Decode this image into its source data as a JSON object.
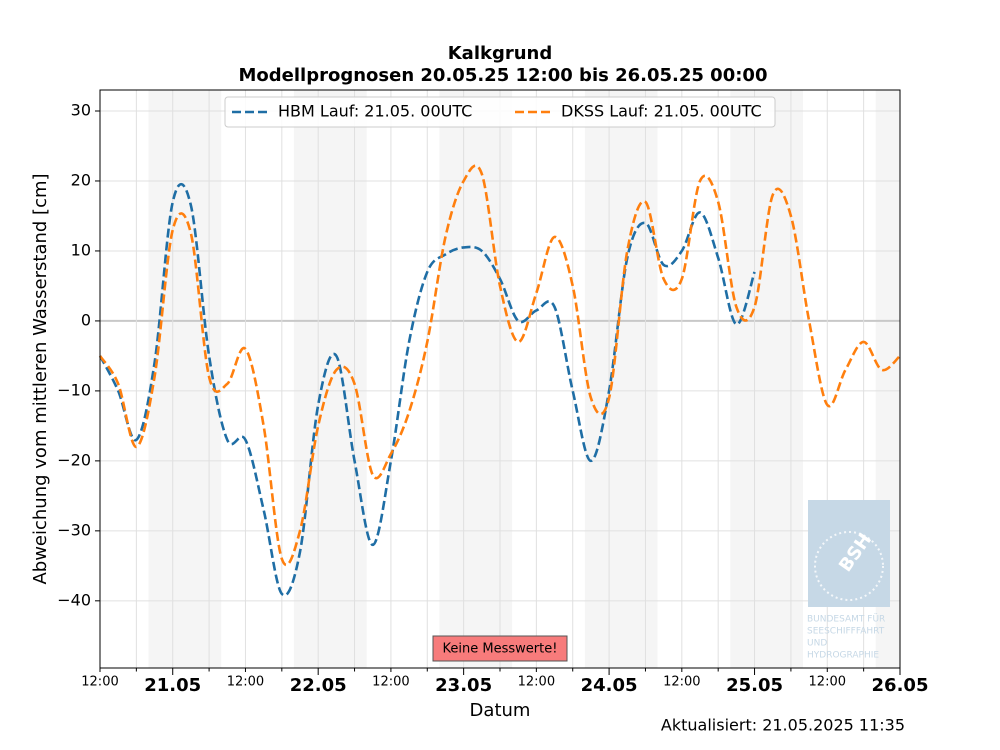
{
  "chart_data": {
    "type": "line",
    "title": "Kalkgrund",
    "subtitle": "Modellprognosen 20.05.25 12:00 bis 26.05.25 00:00",
    "xlabel": "Datum",
    "ylabel": "Abweichung vom mittleren Wasserstand [cm]",
    "annotation": "Keine Messwerte!",
    "updated": "Aktualisiert: 21.05.2025 11:35",
    "logo": {
      "mark": "BSH",
      "lines": [
        "BUNDESAMT FÜR",
        "SEESCHIFFFAHRT",
        "UND",
        "HYDROGRAPHIE"
      ]
    },
    "grid": true,
    "legend": "upper center",
    "x": [
      "2025-05-20T12:00",
      "2025-05-20T15:00",
      "2025-05-20T18:00",
      "2025-05-20T21:00",
      "2025-05-21T00:00",
      "2025-05-21T03:00",
      "2025-05-21T06:00",
      "2025-05-21T09:00",
      "2025-05-21T12:00",
      "2025-05-21T15:00",
      "2025-05-21T18:00",
      "2025-05-21T21:00",
      "2025-05-22T00:00",
      "2025-05-22T03:00",
      "2025-05-22T06:00",
      "2025-05-22T09:00",
      "2025-05-22T12:00",
      "2025-05-22T15:00",
      "2025-05-22T18:00",
      "2025-05-22T21:00",
      "2025-05-23T00:00",
      "2025-05-23T03:00",
      "2025-05-23T06:00",
      "2025-05-23T09:00",
      "2025-05-23T12:00",
      "2025-05-23T15:00",
      "2025-05-23T18:00",
      "2025-05-23T21:00",
      "2025-05-24T00:00",
      "2025-05-24T03:00",
      "2025-05-24T06:00",
      "2025-05-24T09:00",
      "2025-05-24T12:00",
      "2025-05-24T15:00",
      "2025-05-24T18:00",
      "2025-05-24T21:00",
      "2025-05-25T00:00",
      "2025-05-25T03:00",
      "2025-05-25T06:00",
      "2025-05-25T09:00",
      "2025-05-25T12:00",
      "2025-05-25T15:00",
      "2025-05-25T18:00",
      "2025-05-25T21:00",
      "2025-05-26T00:00"
    ],
    "series": [
      {
        "name": "HBM Lauf: 21.05. 00UTC",
        "color": "#1f6ea5",
        "values": [
          -5,
          -10,
          -17,
          -6,
          17,
          16.5,
          -5,
          -17,
          -17,
          -27,
          -39,
          -33,
          -12,
          -5,
          -20,
          -32,
          -20,
          -3,
          7,
          9.5,
          10.5,
          10,
          6,
          0,
          1.5,
          2,
          -10,
          -20,
          -10,
          9,
          14,
          8,
          10,
          15.5,
          9,
          -0.5,
          7,
          null,
          null,
          null,
          null,
          null,
          null,
          null,
          null
        ]
      },
      {
        "name": "DKSS Lauf: 21.05. 00UTC",
        "color": "#ff7f0e",
        "values": [
          -5,
          -9,
          -18,
          -8,
          13,
          12.5,
          -8,
          -9,
          -4,
          -15,
          -34,
          -30,
          -15,
          -7,
          -9,
          -22,
          -19,
          -13,
          -3,
          12,
          20,
          21,
          5,
          -3,
          4,
          12,
          5,
          -11,
          -11,
          10,
          17,
          6,
          6,
          20,
          17,
          2,
          2,
          18,
          15,
          0,
          -12,
          -7,
          -3,
          -7,
          -5
        ]
      }
    ],
    "shaded_spans": [
      [
        "2025-05-20T20:00",
        "2025-05-21T08:00"
      ],
      [
        "2025-05-21T20:00",
        "2025-05-22T08:00"
      ],
      [
        "2025-05-22T20:00",
        "2025-05-23T08:00"
      ],
      [
        "2025-05-23T20:00",
        "2025-05-24T08:00"
      ],
      [
        "2025-05-24T20:00",
        "2025-05-25T08:00"
      ],
      [
        "2025-05-25T20:00",
        "2025-05-26T00:00"
      ]
    ],
    "xlim": [
      "2025-05-20T12:00",
      "2025-05-26T00:00"
    ],
    "xticks": [
      {
        "value": "2025-05-20T12:00",
        "label": "12:00"
      },
      {
        "value": "2025-05-21T00:00",
        "label": "21.05"
      },
      {
        "value": "2025-05-21T12:00",
        "label": "12:00"
      },
      {
        "value": "2025-05-22T00:00",
        "label": "22.05"
      },
      {
        "value": "2025-05-22T12:00",
        "label": "12:00"
      },
      {
        "value": "2025-05-23T00:00",
        "label": "23.05"
      },
      {
        "value": "2025-05-23T12:00",
        "label": "12:00"
      },
      {
        "value": "2025-05-24T00:00",
        "label": "24.05"
      },
      {
        "value": "2025-05-24T12:00",
        "label": "12:00"
      },
      {
        "value": "2025-05-25T00:00",
        "label": "25.05"
      },
      {
        "value": "2025-05-25T12:00",
        "label": "12:00"
      },
      {
        "value": "2025-05-26T00:00",
        "label": "26.05"
      }
    ],
    "xminor_ticks": [
      "2025-05-20T18:00",
      "2025-05-21T06:00",
      "2025-05-21T18:00",
      "2025-05-22T06:00",
      "2025-05-22T18:00",
      "2025-05-23T06:00",
      "2025-05-23T18:00",
      "2025-05-24T06:00",
      "2025-05-24T18:00",
      "2025-05-25T06:00",
      "2025-05-25T18:00"
    ],
    "ylim": [
      -49.6,
      33
    ],
    "yticks": [
      {
        "value": -40,
        "label": "−40"
      },
      {
        "value": -30,
        "label": "−30"
      },
      {
        "value": -20,
        "label": "−20"
      },
      {
        "value": -10,
        "label": "−10"
      },
      0,
      10,
      20,
      30
    ]
  }
}
